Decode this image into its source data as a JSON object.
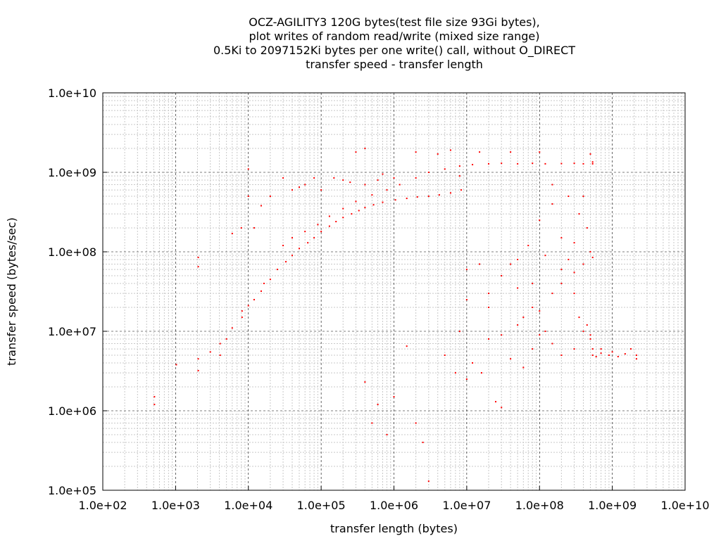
{
  "chart_data": {
    "type": "scatter",
    "title_lines": [
      "OCZ-AGILITY3 120G bytes(test file size 93Gi bytes),",
      "plot writes of random read/write (mixed size range)",
      "0.5Ki to 2097152Ki bytes per one write() call, without O_DIRECT",
      "transfer speed - transfer length"
    ],
    "xlabel": "transfer length (bytes)",
    "ylabel": "transfer speed (bytes/sec)",
    "x_scale": "log",
    "y_scale": "log",
    "xlim": [
      100,
      10000000000
    ],
    "ylim": [
      100000,
      10000000000
    ],
    "x_ticks": [
      {
        "value": 100,
        "label": "1.0e+02"
      },
      {
        "value": 1000,
        "label": "1.0e+03"
      },
      {
        "value": 10000,
        "label": "1.0e+04"
      },
      {
        "value": 100000,
        "label": "1.0e+05"
      },
      {
        "value": 1000000,
        "label": "1.0e+06"
      },
      {
        "value": 10000000,
        "label": "1.0e+07"
      },
      {
        "value": 100000000,
        "label": "1.0e+08"
      },
      {
        "value": 1000000000,
        "label": "1.0e+09"
      },
      {
        "value": 10000000000,
        "label": "1.0e+10"
      }
    ],
    "y_ticks": [
      {
        "value": 100000,
        "label": "1.0e+05"
      },
      {
        "value": 1000000,
        "label": "1.0e+06"
      },
      {
        "value": 10000000,
        "label": "1.0e+07"
      },
      {
        "value": 100000000,
        "label": "1.0e+08"
      },
      {
        "value": 1000000000,
        "label": "1.0e+09"
      },
      {
        "value": 10000000000,
        "label": "1.0e+10"
      }
    ],
    "grid": true,
    "minor_grid": true,
    "legend": false,
    "series": [
      {
        "color": "#ff0000",
        "marker": "dot",
        "points": [
          [
            512,
            1200000
          ],
          [
            512,
            1500000
          ],
          [
            1024,
            3800000
          ],
          [
            2048,
            3200000
          ],
          [
            2048,
            4500000
          ],
          [
            2048,
            65000000
          ],
          [
            2048,
            85000000
          ],
          [
            3000,
            5500000
          ],
          [
            4096,
            5000000
          ],
          [
            4096,
            7000000
          ],
          [
            5000,
            8000000
          ],
          [
            6000,
            11000000
          ],
          [
            8192,
            15000000
          ],
          [
            8192,
            18000000
          ],
          [
            10000,
            21000000
          ],
          [
            10000,
            1100000000
          ],
          [
            12000,
            25000000
          ],
          [
            15000,
            32000000
          ],
          [
            16384,
            40000000
          ],
          [
            20000,
            45000000
          ],
          [
            25000,
            60000000
          ],
          [
            32768,
            75000000
          ],
          [
            40000,
            90000000
          ],
          [
            50000,
            110000000
          ],
          [
            65536,
            130000000
          ],
          [
            80000,
            150000000
          ],
          [
            100000,
            180000000
          ],
          [
            130000,
            210000000
          ],
          [
            160000,
            240000000
          ],
          [
            200000,
            270000000
          ],
          [
            262144,
            300000000
          ],
          [
            330000,
            330000000
          ],
          [
            400000,
            360000000
          ],
          [
            524288,
            390000000
          ],
          [
            700000,
            420000000
          ],
          [
            1048576,
            450000000
          ],
          [
            1500000,
            470000000
          ],
          [
            2097152,
            490000000
          ],
          [
            3000000,
            500000000
          ],
          [
            4194304,
            520000000
          ],
          [
            6000000,
            550000000
          ],
          [
            8388608,
            600000000
          ],
          [
            8000000,
            900000000
          ],
          [
            30000,
            120000000
          ],
          [
            40000,
            150000000
          ],
          [
            60000,
            180000000
          ],
          [
            90000,
            220000000
          ],
          [
            130000,
            280000000
          ],
          [
            200000,
            350000000
          ],
          [
            300000,
            430000000
          ],
          [
            500000,
            520000000
          ],
          [
            800000,
            600000000
          ],
          [
            1200000,
            700000000
          ],
          [
            2000000,
            850000000
          ],
          [
            3000000,
            1000000000
          ],
          [
            5000000,
            1100000000
          ],
          [
            8000000,
            1200000000
          ],
          [
            12000000,
            1250000000
          ],
          [
            20000000,
            1280000000
          ],
          [
            30000000,
            1300000000
          ],
          [
            50000000,
            1280000000
          ],
          [
            80000000,
            1300000000
          ],
          [
            120000000,
            1280000000
          ],
          [
            200000000,
            1290000000
          ],
          [
            300000000,
            1300000000
          ],
          [
            400000000,
            1280000000
          ],
          [
            536870912,
            1280000000
          ],
          [
            536870912,
            1350000000
          ],
          [
            500000000,
            1700000000
          ],
          [
            15000000,
            1800000000
          ],
          [
            40000000,
            1800000000
          ],
          [
            100000000,
            1800000000
          ],
          [
            6000000,
            1900000000
          ],
          [
            400000,
            2000000000
          ],
          [
            300000,
            1800000000
          ],
          [
            2000000,
            1800000000
          ],
          [
            4000000,
            1700000000
          ],
          [
            1000000,
            850000000
          ],
          [
            600000,
            800000000
          ],
          [
            400000,
            700000000
          ],
          [
            200000,
            800000000
          ],
          [
            150000,
            850000000
          ],
          [
            80000,
            850000000
          ],
          [
            60000,
            700000000
          ],
          [
            40000,
            600000000
          ],
          [
            30000,
            850000000
          ],
          [
            20000,
            500000000
          ],
          [
            15000,
            380000000
          ],
          [
            12000,
            200000000
          ],
          [
            10000,
            500000000
          ],
          [
            8000,
            200000000
          ],
          [
            6000,
            170000000
          ],
          [
            100000,
            600000000
          ],
          [
            50000,
            650000000
          ],
          [
            250000,
            750000000
          ],
          [
            700000,
            950000000
          ],
          [
            10000000,
            60000000
          ],
          [
            15000000,
            70000000
          ],
          [
            20000000,
            30000000
          ],
          [
            30000000,
            9000000
          ],
          [
            25000000,
            1300000
          ],
          [
            30000000,
            1100000
          ],
          [
            2000000,
            700000
          ],
          [
            2500000,
            400000
          ],
          [
            3000000,
            130000
          ],
          [
            800000,
            500000
          ],
          [
            1000000,
            1500000
          ],
          [
            600000,
            1200000
          ],
          [
            500000,
            700000
          ],
          [
            400000,
            2300000
          ],
          [
            1500000,
            6500000
          ],
          [
            5000000,
            5000000
          ],
          [
            8000000,
            10000000
          ],
          [
            10000000,
            25000000
          ],
          [
            12000000,
            4000000
          ],
          [
            20000000,
            8000000
          ],
          [
            40000000,
            4500000
          ],
          [
            60000000,
            3500000
          ],
          [
            50000000,
            12000000
          ],
          [
            80000000,
            20000000
          ],
          [
            100000000,
            18000000
          ],
          [
            150000000,
            30000000
          ],
          [
            200000000,
            40000000
          ],
          [
            300000000,
            55000000
          ],
          [
            400000000,
            70000000
          ],
          [
            536870912,
            85000000
          ],
          [
            150000000,
            400000000
          ],
          [
            200000000,
            150000000
          ],
          [
            250000000,
            80000000
          ],
          [
            300000000,
            30000000
          ],
          [
            350000000,
            15000000
          ],
          [
            400000000,
            10000000
          ],
          [
            500000000,
            8000000
          ],
          [
            536870912,
            6000000
          ],
          [
            700000000,
            6000000
          ],
          [
            1000000000,
            5500000
          ],
          [
            1500000000,
            5200000
          ],
          [
            2147483648,
            5000000
          ],
          [
            2147483648,
            4500000
          ],
          [
            1800000000,
            6000000
          ],
          [
            1200000000,
            4800000
          ],
          [
            900000000,
            5000000
          ],
          [
            700000000,
            5300000
          ],
          [
            600000000,
            4800000
          ],
          [
            536870912,
            5000000
          ],
          [
            500000000,
            9000000
          ],
          [
            450000000,
            12000000
          ],
          [
            300000000,
            6000000
          ],
          [
            200000000,
            5000000
          ],
          [
            150000000,
            7000000
          ],
          [
            120000000,
            10000000
          ],
          [
            100000000,
            9000000
          ],
          [
            80000000,
            6000000
          ],
          [
            60000000,
            15000000
          ],
          [
            50000000,
            35000000
          ],
          [
            40000000,
            70000000
          ],
          [
            70000000,
            120000000
          ],
          [
            100000000,
            250000000
          ],
          [
            150000000,
            700000000
          ],
          [
            250000000,
            500000000
          ],
          [
            400000000,
            500000000
          ],
          [
            350000000,
            300000000
          ],
          [
            450000000,
            200000000
          ],
          [
            500000000,
            100000000
          ],
          [
            300000000,
            130000000
          ],
          [
            200000000,
            60000000
          ],
          [
            120000000,
            90000000
          ],
          [
            80000000,
            40000000
          ],
          [
            50000000,
            80000000
          ],
          [
            30000000,
            50000000
          ],
          [
            20000000,
            20000000
          ],
          [
            16000000,
            3000000
          ],
          [
            10000000,
            2500000
          ],
          [
            7000000,
            3000000
          ]
        ]
      }
    ]
  }
}
